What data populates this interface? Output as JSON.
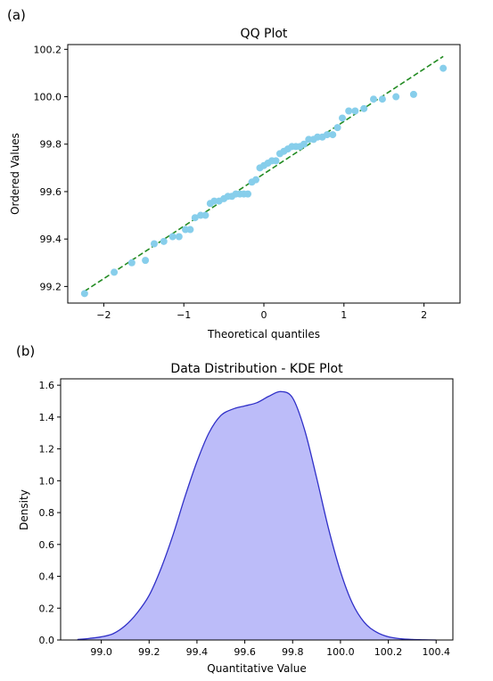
{
  "panels": [
    "(a)",
    "(b)"
  ],
  "chart_data": [
    {
      "type": "scatter",
      "title": "QQ Plot",
      "xlabel": "Theoretical quantiles",
      "ylabel": "Ordered Values",
      "xlim": [
        -2.45,
        2.45
      ],
      "ylim": [
        99.13,
        100.22
      ],
      "xticks": [
        -2,
        -1,
        0,
        1,
        2
      ],
      "xtick_labels": [
        "−2",
        "−1",
        "0",
        "1",
        "2"
      ],
      "yticks": [
        99.2,
        99.4,
        99.6,
        99.8,
        100.0,
        100.2
      ],
      "ytick_labels": [
        "99.2",
        "99.4",
        "99.6",
        "99.8",
        "100.0",
        "100.2"
      ],
      "point_color": "#87ceeb",
      "line_color": "#228b22",
      "grid": false,
      "points": [
        [
          -2.24,
          99.17
        ],
        [
          -1.87,
          99.26
        ],
        [
          -1.65,
          99.3
        ],
        [
          -1.48,
          99.31
        ],
        [
          -1.37,
          99.38
        ],
        [
          -1.25,
          99.39
        ],
        [
          -1.14,
          99.41
        ],
        [
          -1.06,
          99.41
        ],
        [
          -0.98,
          99.44
        ],
        [
          -0.92,
          99.44
        ],
        [
          -0.86,
          99.49
        ],
        [
          -0.79,
          99.5
        ],
        [
          -0.73,
          99.5
        ],
        [
          -0.67,
          99.55
        ],
        [
          -0.62,
          99.56
        ],
        [
          -0.56,
          99.56
        ],
        [
          -0.5,
          99.57
        ],
        [
          -0.45,
          99.58
        ],
        [
          -0.4,
          99.58
        ],
        [
          -0.35,
          99.59
        ],
        [
          -0.3,
          99.59
        ],
        [
          -0.25,
          99.59
        ],
        [
          -0.2,
          99.59
        ],
        [
          -0.15,
          99.64
        ],
        [
          -0.1,
          99.65
        ],
        [
          -0.05,
          99.7
        ],
        [
          0.0,
          99.71
        ],
        [
          0.05,
          99.72
        ],
        [
          0.1,
          99.73
        ],
        [
          0.15,
          99.73
        ],
        [
          0.2,
          99.76
        ],
        [
          0.25,
          99.77
        ],
        [
          0.3,
          99.78
        ],
        [
          0.35,
          99.79
        ],
        [
          0.4,
          99.79
        ],
        [
          0.45,
          99.79
        ],
        [
          0.5,
          99.8
        ],
        [
          0.56,
          99.82
        ],
        [
          0.62,
          99.82
        ],
        [
          0.67,
          99.83
        ],
        [
          0.73,
          99.83
        ],
        [
          0.79,
          99.84
        ],
        [
          0.86,
          99.84
        ],
        [
          0.92,
          99.87
        ],
        [
          0.98,
          99.91
        ],
        [
          1.06,
          99.94
        ],
        [
          1.14,
          99.94
        ],
        [
          1.25,
          99.95
        ],
        [
          1.37,
          99.99
        ],
        [
          1.48,
          99.99
        ],
        [
          1.65,
          100.0
        ],
        [
          1.87,
          100.01
        ],
        [
          2.24,
          100.12
        ]
      ],
      "fit_line": {
        "x": [
          -2.24,
          2.24
        ],
        "y": [
          99.18,
          100.17
        ]
      }
    },
    {
      "type": "area",
      "title": "Data Distribution - KDE Plot",
      "xlabel": "Quantitative Value",
      "ylabel": "Density",
      "xlim": [
        98.83,
        100.47
      ],
      "ylim": [
        0,
        1.64
      ],
      "xticks": [
        99.0,
        99.2,
        99.4,
        99.6,
        99.8,
        100.0,
        100.2,
        100.4
      ],
      "xtick_labels": [
        "99.0",
        "99.2",
        "99.4",
        "99.6",
        "99.8",
        "100.0",
        "100.2",
        "100.4"
      ],
      "yticks": [
        0.0,
        0.2,
        0.4,
        0.6,
        0.8,
        1.0,
        1.2,
        1.4,
        1.6
      ],
      "ytick_labels": [
        "0.0",
        "0.2",
        "0.4",
        "0.6",
        "0.8",
        "1.0",
        "1.2",
        "1.4",
        "1.6"
      ],
      "fill_color": "#bcbcf9",
      "line_color": "#3030c8",
      "grid": false,
      "x": [
        98.9,
        98.95,
        99.0,
        99.05,
        99.1,
        99.15,
        99.2,
        99.25,
        99.3,
        99.35,
        99.4,
        99.45,
        99.5,
        99.55,
        99.6,
        99.65,
        99.7,
        99.75,
        99.8,
        99.85,
        99.9,
        99.95,
        100.0,
        100.05,
        100.1,
        100.15,
        100.2,
        100.25,
        100.3,
        100.35,
        100.4
      ],
      "y": [
        0.003,
        0.01,
        0.02,
        0.04,
        0.09,
        0.17,
        0.28,
        0.45,
        0.66,
        0.9,
        1.12,
        1.3,
        1.41,
        1.45,
        1.47,
        1.49,
        1.53,
        1.56,
        1.52,
        1.32,
        1.02,
        0.7,
        0.43,
        0.23,
        0.11,
        0.05,
        0.02,
        0.008,
        0.003,
        0.001,
        0.0
      ]
    }
  ]
}
